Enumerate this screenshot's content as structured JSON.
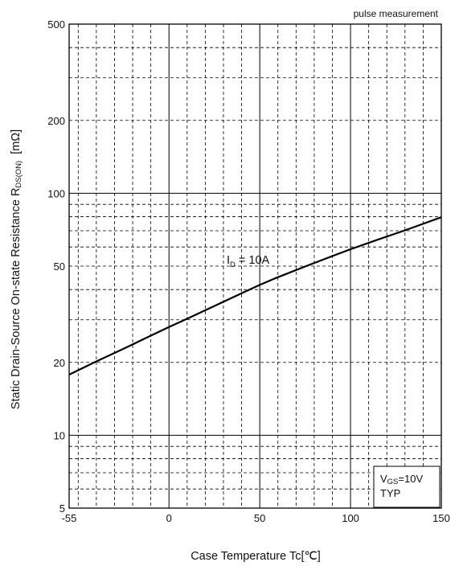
{
  "chart_data": {
    "type": "line",
    "note": "pulse measurement",
    "xlabel": "Case Temperature  Tc[℃]",
    "ylabel": {
      "main": "Static Drain-Source On-state Resistance  R",
      "sub": "DS(ON)",
      "unit": "[mΩ]"
    },
    "xlim": [
      -55,
      150
    ],
    "ylim": [
      5,
      500
    ],
    "yscale": "log",
    "grid": true,
    "xticks": [
      -55,
      0,
      50,
      100,
      150
    ],
    "yticks": [
      5,
      10,
      20,
      50,
      100,
      200,
      500
    ],
    "series": [
      {
        "name": "ID = 10A",
        "label_main": "I",
        "label_sub": "D",
        "label_rest": " = 10A",
        "x": [
          -55,
          -40,
          -25,
          -10,
          0,
          10,
          25,
          40,
          50,
          60,
          75,
          90,
          100,
          115,
          130,
          150
        ],
        "y": [
          17.8,
          20.2,
          22.8,
          25.8,
          28.0,
          30.3,
          34.2,
          38.6,
          41.8,
          45.0,
          49.8,
          55.0,
          58.7,
          64.3,
          70.3,
          79.6
        ]
      }
    ],
    "conditions": {
      "vgs_main": "V",
      "vgs_sub": "GS",
      "vgs_rest": "=10V",
      "typ": "TYP"
    }
  }
}
